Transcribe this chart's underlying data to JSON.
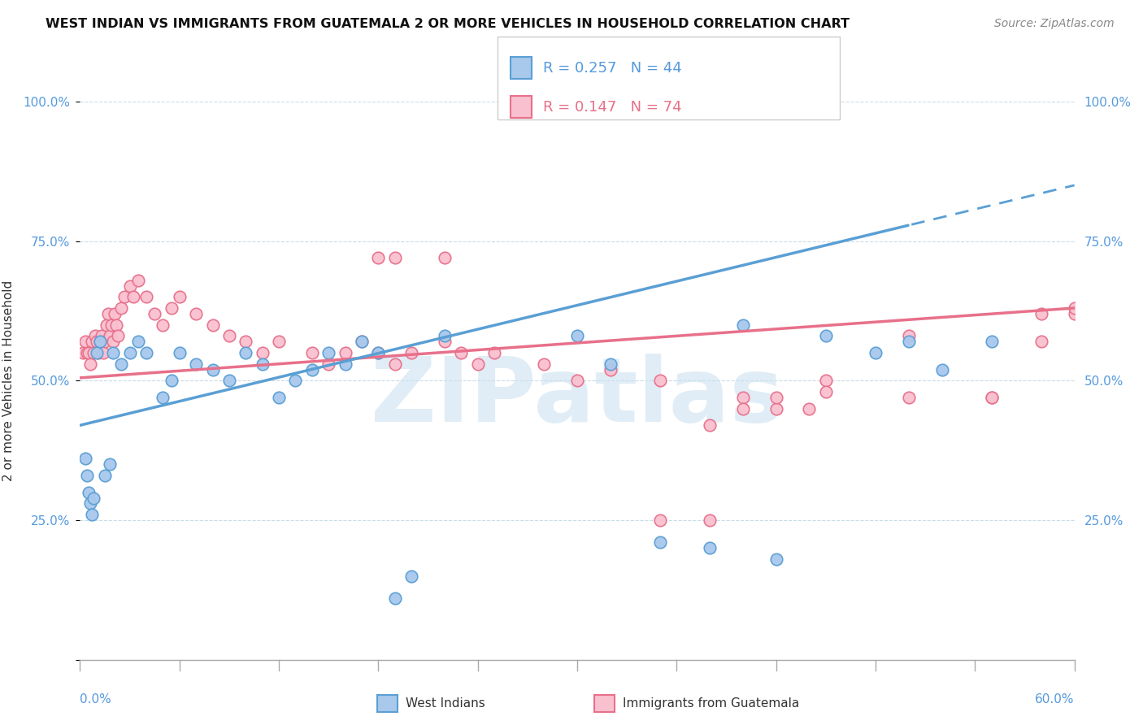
{
  "title": "WEST INDIAN VS IMMIGRANTS FROM GUATEMALA 2 OR MORE VEHICLES IN HOUSEHOLD CORRELATION CHART",
  "source": "Source: ZipAtlas.com",
  "ylabel": "2 or more Vehicles in Household",
  "xmin": 0.0,
  "xmax": 60.0,
  "ymin": 0.0,
  "ymax": 100.0,
  "blue_R": 0.257,
  "blue_N": 44,
  "pink_R": 0.147,
  "pink_N": 74,
  "blue_dot_color": "#a8c8ec",
  "blue_edge_color": "#5a9fd4",
  "pink_dot_color": "#f9c0d0",
  "pink_edge_color": "#e8708a",
  "blue_line_color": "#5a9fd4",
  "pink_line_color": "#e8708a",
  "legend_label_blue": "West Indians",
  "legend_label_pink": "Immigrants from Guatemala",
  "watermark_text": "ZIPatlas",
  "watermark_color": "#c8dff0",
  "blue_trend_x0": 0.0,
  "blue_trend_y0": 42.0,
  "blue_trend_x1": 60.0,
  "blue_trend_y1": 85.0,
  "blue_solid_end": 50.0,
  "pink_trend_x0": 0.0,
  "pink_trend_y0": 50.5,
  "pink_trend_x1": 60.0,
  "pink_trend_y1": 63.0,
  "blue_x": [
    0.3,
    0.4,
    0.5,
    0.6,
    0.7,
    0.8,
    1.0,
    1.2,
    1.5,
    1.8,
    2.0,
    2.5,
    3.0,
    3.5,
    4.0,
    5.0,
    5.5,
    6.0,
    7.0,
    8.0,
    9.0,
    10.0,
    11.0,
    12.0,
    13.0,
    14.0,
    15.0,
    16.0,
    17.0,
    18.0,
    19.0,
    20.0,
    22.0,
    30.0,
    32.0,
    35.0,
    38.0,
    40.0,
    42.0,
    45.0,
    48.0,
    50.0,
    52.0,
    55.0
  ],
  "blue_y": [
    36.0,
    33.0,
    30.0,
    28.0,
    26.0,
    29.0,
    55.0,
    57.0,
    33.0,
    35.0,
    55.0,
    53.0,
    55.0,
    57.0,
    55.0,
    47.0,
    50.0,
    55.0,
    53.0,
    52.0,
    50.0,
    55.0,
    53.0,
    47.0,
    50.0,
    52.0,
    55.0,
    53.0,
    57.0,
    55.0,
    11.0,
    15.0,
    58.0,
    58.0,
    53.0,
    21.0,
    20.0,
    60.0,
    18.0,
    58.0,
    55.0,
    57.0,
    52.0,
    57.0
  ],
  "pink_x": [
    0.2,
    0.3,
    0.4,
    0.5,
    0.6,
    0.7,
    0.8,
    0.9,
    1.0,
    1.1,
    1.2,
    1.3,
    1.4,
    1.5,
    1.6,
    1.7,
    1.8,
    1.9,
    2.0,
    2.1,
    2.2,
    2.3,
    2.5,
    2.7,
    3.0,
    3.2,
    3.5,
    4.0,
    4.5,
    5.0,
    5.5,
    6.0,
    7.0,
    8.0,
    9.0,
    10.0,
    11.0,
    12.0,
    14.0,
    15.0,
    16.0,
    17.0,
    18.0,
    19.0,
    20.0,
    22.0,
    23.0,
    24.0,
    25.0,
    28.0,
    30.0,
    32.0,
    35.0,
    18.0,
    19.0,
    22.0,
    35.0,
    38.0,
    40.0,
    42.0,
    45.0,
    50.0,
    55.0,
    58.0,
    60.0,
    38.0,
    40.0,
    45.0,
    50.0,
    55.0,
    58.0,
    60.0,
    42.0,
    44.0
  ],
  "pink_y": [
    55.0,
    57.0,
    55.0,
    55.0,
    53.0,
    57.0,
    55.0,
    58.0,
    57.0,
    55.0,
    57.0,
    58.0,
    55.0,
    57.0,
    60.0,
    62.0,
    58.0,
    60.0,
    57.0,
    62.0,
    60.0,
    58.0,
    63.0,
    65.0,
    67.0,
    65.0,
    68.0,
    65.0,
    62.0,
    60.0,
    63.0,
    65.0,
    62.0,
    60.0,
    58.0,
    57.0,
    55.0,
    57.0,
    55.0,
    53.0,
    55.0,
    57.0,
    55.0,
    53.0,
    55.0,
    57.0,
    55.0,
    53.0,
    55.0,
    53.0,
    50.0,
    52.0,
    50.0,
    72.0,
    72.0,
    72.0,
    25.0,
    25.0,
    47.0,
    45.0,
    50.0,
    58.0,
    47.0,
    57.0,
    62.0,
    42.0,
    45.0,
    48.0,
    47.0,
    47.0,
    62.0,
    63.0,
    47.0,
    45.0
  ]
}
